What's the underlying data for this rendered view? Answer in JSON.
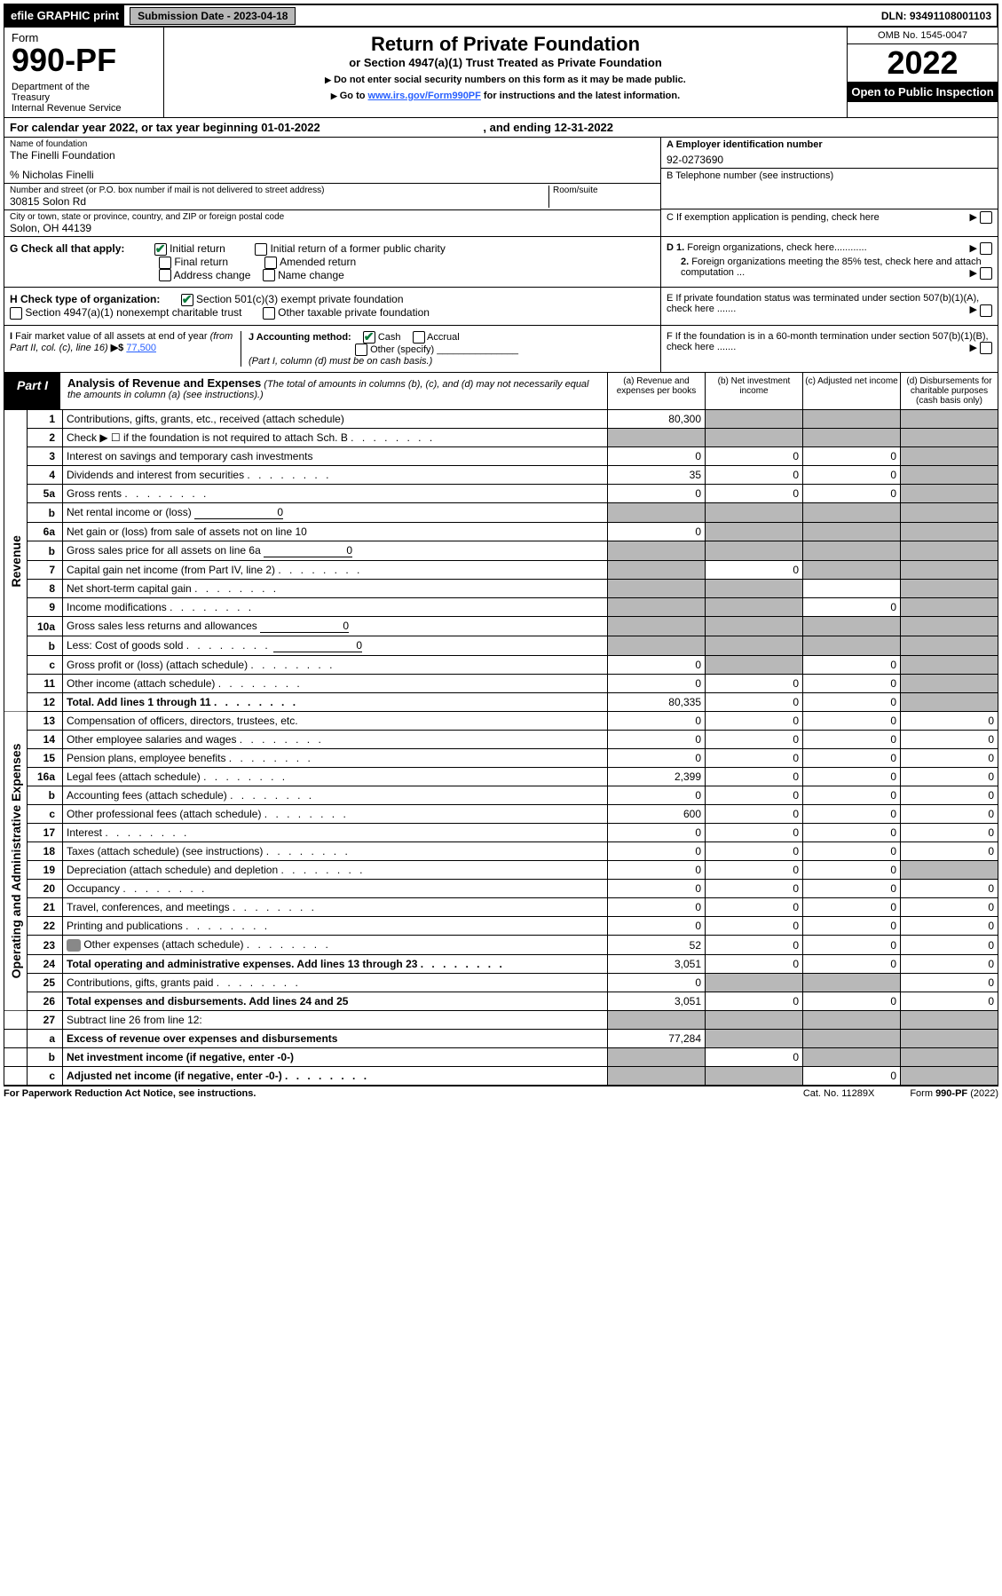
{
  "top": {
    "efile": "efile GRAPHIC print",
    "subdate_lbl": "Submission Date - 2023-04-18",
    "dln": "DLN: 93491108001103"
  },
  "hdr": {
    "form": "Form",
    "formno": "990-PF",
    "dept": "Department of the Treasury\nInternal Revenue Service",
    "title": "Return of Private Foundation",
    "subtitle": "or Section 4947(a)(1) Trust Treated as Private Foundation",
    "note1": "Do not enter social security numbers on this form as it may be made public.",
    "note2_pre": "Go to ",
    "note2_link": "www.irs.gov/Form990PF",
    "note2_post": " for instructions and the latest information.",
    "omb": "OMB No. 1545-0047",
    "year": "2022",
    "open": "Open to Public Inspection"
  },
  "cal": {
    "text": "For calendar year 2022, or tax year beginning 01-01-2022",
    "end": ", and ending 12-31-2022"
  },
  "id": {
    "name_lbl": "Name of foundation",
    "name": "The Finelli Foundation",
    "care": "% Nicholas Finelli",
    "addr_lbl": "Number and street (or P.O. box number if mail is not delivered to street address)",
    "addr": "30815 Solon Rd",
    "room_lbl": "Room/suite",
    "city_lbl": "City or town, state or province, country, and ZIP or foreign postal code",
    "city": "Solon, OH  44139",
    "ein_lbl": "A Employer identification number",
    "ein": "92-0273690",
    "tel_lbl": "B Telephone number (see instructions)",
    "c_lbl": "C If exemption application is pending, check here",
    "d1": "D 1. Foreign organizations, check here............",
    "d2": "2. Foreign organizations meeting the 85% test, check here and attach computation ...",
    "e": "E  If private foundation status was terminated under section 507(b)(1)(A), check here .......",
    "f": "F  If the foundation is in a 60-month termination under section 507(b)(1)(B), check here .......",
    "g_lbl": "G Check all that apply:",
    "g_initial": "Initial return",
    "g_initial_public": "Initial return of a former public charity",
    "g_final": "Final return",
    "g_amended": "Amended return",
    "g_addr": "Address change",
    "g_name": "Name change",
    "h_lbl": "H Check type of organization:",
    "h_501": "Section 501(c)(3) exempt private foundation",
    "h_4947": "Section 4947(a)(1) nonexempt charitable trust",
    "h_other": "Other taxable private foundation",
    "i_lbl": "I Fair market value of all assets at end of year (from Part II, col. (c), line 16)",
    "i_val": "77,500",
    "j_lbl": "J Accounting method:",
    "j_cash": "Cash",
    "j_accrual": "Accrual",
    "j_other": "Other (specify)",
    "j_note": "(Part I, column (d) must be on cash basis.)"
  },
  "part1": {
    "lbl": "Part I",
    "title": "Analysis of Revenue and Expenses",
    "note": "(The total of amounts in columns (b), (c), and (d) may not necessarily equal the amounts in column (a) (see instructions).)",
    "col_a": "(a)   Revenue and expenses per books",
    "col_b": "(b)   Net investment income",
    "col_c": "(c)   Adjusted net income",
    "col_d": "(d)   Disbursements for charitable purposes (cash basis only)"
  },
  "sec": {
    "rev": "Revenue",
    "exp": "Operating and Administrative Expenses"
  },
  "rows": [
    {
      "n": "1",
      "d": "Contributions, gifts, grants, etc., received (attach schedule)",
      "a": "80,300",
      "bg": [
        "",
        "g",
        "g",
        "g"
      ]
    },
    {
      "n": "2",
      "d": "Check ▶ ☐ if the foundation is not required to attach Sch. B",
      "bg": [
        "g",
        "g",
        "g",
        "g"
      ],
      "dots": 1
    },
    {
      "n": "3",
      "d": "Interest on savings and temporary cash investments",
      "a": "0",
      "b": "0",
      "c": "0",
      "bg": [
        "",
        "",
        "",
        "g"
      ]
    },
    {
      "n": "4",
      "d": "Dividends and interest from securities",
      "a": "35",
      "b": "0",
      "c": "0",
      "bg": [
        "",
        "",
        "",
        "g"
      ],
      "dots": 1
    },
    {
      "n": "5a",
      "d": "Gross rents",
      "a": "0",
      "b": "0",
      "c": "0",
      "bg": [
        "",
        "",
        "",
        "g"
      ],
      "dots": 1
    },
    {
      "n": "b",
      "d": "Net rental income or (loss)",
      "inline": "0",
      "bg": [
        "g",
        "g",
        "g",
        "g"
      ]
    },
    {
      "n": "6a",
      "d": "Net gain or (loss) from sale of assets not on line 10",
      "a": "0",
      "bg": [
        "",
        "g",
        "g",
        "g"
      ]
    },
    {
      "n": "b",
      "d": "Gross sales price for all assets on line 6a",
      "inline": "0",
      "bg": [
        "g",
        "g",
        "g",
        "g"
      ]
    },
    {
      "n": "7",
      "d": "Capital gain net income (from Part IV, line 2)",
      "b": "0",
      "bg": [
        "g",
        "",
        "g",
        "g"
      ],
      "dots": 1
    },
    {
      "n": "8",
      "d": "Net short-term capital gain",
      "bg": [
        "g",
        "g",
        "",
        "g"
      ],
      "dots": 1
    },
    {
      "n": "9",
      "d": "Income modifications",
      "c": "0",
      "bg": [
        "g",
        "g",
        "",
        "g"
      ],
      "dots": 1
    },
    {
      "n": "10a",
      "d": "Gross sales less returns and allowances",
      "inline": "0",
      "bg": [
        "g",
        "g",
        "g",
        "g"
      ]
    },
    {
      "n": "b",
      "d": "Less: Cost of goods sold",
      "inline": "0",
      "bg": [
        "g",
        "g",
        "g",
        "g"
      ],
      "dots": 1
    },
    {
      "n": "c",
      "d": "Gross profit or (loss) (attach schedule)",
      "a": "0",
      "c": "0",
      "bg": [
        "",
        "g",
        "",
        "g"
      ],
      "dots": 1
    },
    {
      "n": "11",
      "d": "Other income (attach schedule)",
      "a": "0",
      "b": "0",
      "c": "0",
      "bg": [
        "",
        "",
        "",
        "g"
      ],
      "dots": 1
    },
    {
      "n": "12",
      "d": "Total. Add lines 1 through 11",
      "a": "80,335",
      "b": "0",
      "c": "0",
      "bg": [
        "",
        "",
        "",
        "g"
      ],
      "bold": 1,
      "dots": 1
    }
  ],
  "exp": [
    {
      "n": "13",
      "d": "Compensation of officers, directors, trustees, etc.",
      "a": "0",
      "b": "0",
      "c": "0",
      "dd": "0"
    },
    {
      "n": "14",
      "d": "Other employee salaries and wages",
      "a": "0",
      "b": "0",
      "c": "0",
      "dd": "0",
      "dots": 1
    },
    {
      "n": "15",
      "d": "Pension plans, employee benefits",
      "a": "0",
      "b": "0",
      "c": "0",
      "dd": "0",
      "dots": 1
    },
    {
      "n": "16a",
      "d": "Legal fees (attach schedule)",
      "a": "2,399",
      "b": "0",
      "c": "0",
      "dd": "0",
      "dots": 1
    },
    {
      "n": "b",
      "d": "Accounting fees (attach schedule)",
      "a": "0",
      "b": "0",
      "c": "0",
      "dd": "0",
      "dots": 1
    },
    {
      "n": "c",
      "d": "Other professional fees (attach schedule)",
      "a": "600",
      "b": "0",
      "c": "0",
      "dd": "0",
      "dots": 1
    },
    {
      "n": "17",
      "d": "Interest",
      "a": "0",
      "b": "0",
      "c": "0",
      "dd": "0",
      "dots": 1
    },
    {
      "n": "18",
      "d": "Taxes (attach schedule) (see instructions)",
      "a": "0",
      "b": "0",
      "c": "0",
      "dd": "0",
      "dots": 1
    },
    {
      "n": "19",
      "d": "Depreciation (attach schedule) and depletion",
      "a": "0",
      "b": "0",
      "c": "0",
      "bg": [
        "",
        "",
        "",
        "g"
      ],
      "dots": 1
    },
    {
      "n": "20",
      "d": "Occupancy",
      "a": "0",
      "b": "0",
      "c": "0",
      "dd": "0",
      "dots": 1
    },
    {
      "n": "21",
      "d": "Travel, conferences, and meetings",
      "a": "0",
      "b": "0",
      "c": "0",
      "dd": "0",
      "dots": 1
    },
    {
      "n": "22",
      "d": "Printing and publications",
      "a": "0",
      "b": "0",
      "c": "0",
      "dd": "0",
      "dots": 1
    },
    {
      "n": "23",
      "d": "Other expenses (attach schedule)",
      "a": "52",
      "b": "0",
      "c": "0",
      "dd": "0",
      "dots": 1,
      "icon": 1
    },
    {
      "n": "24",
      "d": "Total operating and administrative expenses. Add lines 13 through 23",
      "a": "3,051",
      "b": "0",
      "c": "0",
      "dd": "0",
      "bold": 1,
      "dots": 1
    },
    {
      "n": "25",
      "d": "Contributions, gifts, grants paid",
      "a": "0",
      "dd": "0",
      "bg": [
        "",
        "g",
        "g",
        ""
      ],
      "dots": 1
    },
    {
      "n": "26",
      "d": "Total expenses and disbursements. Add lines 24 and 25",
      "a": "3,051",
      "b": "0",
      "c": "0",
      "dd": "0",
      "bold": 1
    }
  ],
  "net": [
    {
      "n": "27",
      "d": "Subtract line 26 from line 12:",
      "bg": [
        "g",
        "g",
        "g",
        "g"
      ]
    },
    {
      "n": "a",
      "d": "Excess of revenue over expenses and disbursements",
      "a": "77,284",
      "bg": [
        "",
        "g",
        "g",
        "g"
      ],
      "bold": 1
    },
    {
      "n": "b",
      "d": "Net investment income (if negative, enter -0-)",
      "b": "0",
      "bg": [
        "g",
        "",
        "g",
        "g"
      ],
      "bold": 1
    },
    {
      "n": "c",
      "d": "Adjusted net income (if negative, enter -0-)",
      "c": "0",
      "bg": [
        "g",
        "g",
        "",
        "g"
      ],
      "bold": 1,
      "dots": 1
    }
  ],
  "foot": {
    "l": "For Paperwork Reduction Act Notice, see instructions.",
    "c": "Cat. No. 11289X",
    "r": "Form 990-PF (2022)"
  }
}
